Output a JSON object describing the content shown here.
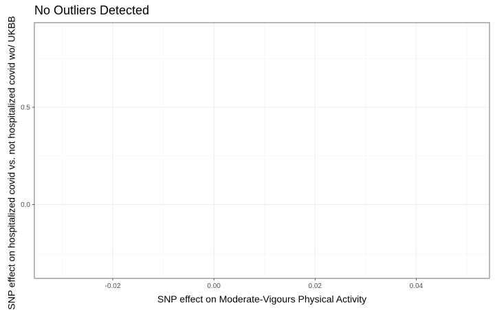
{
  "chart_data": {
    "type": "scatter",
    "title": "No Outliers Detected",
    "xlabel": "SNP effect on Moderate-Vigours Physical Activity",
    "ylabel": "SNP effect on hospitalized covid vs. not hospitalized covid wo/ UKBB",
    "xlim": [
      -0.0355,
      0.0545
    ],
    "ylim": [
      -0.38,
      0.935
    ],
    "x_ticks": [
      -0.02,
      0.0,
      0.02,
      0.04
    ],
    "x_tick_labels": [
      "-0.02",
      "0.00",
      "0.02",
      "0.04"
    ],
    "x_minor_ticks": [
      -0.03,
      -0.01,
      0.01,
      0.03,
      0.05
    ],
    "y_ticks": [
      0.0,
      0.5
    ],
    "y_tick_labels": [
      "0.0",
      "0.5"
    ],
    "y_minor_ticks": [
      -0.25,
      0.25,
      0.75
    ],
    "grid": true,
    "points": []
  }
}
